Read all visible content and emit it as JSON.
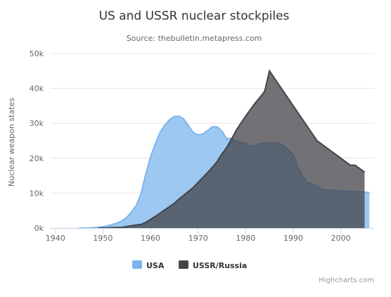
{
  "chart_data": {
    "type": "area",
    "title": "US and USSR nuclear stockpiles",
    "subtitle": "Source: thebulletin.metapress.com",
    "xlabel": "",
    "ylabel": "Nuclear weapon states",
    "xlim": [
      1939,
      2007
    ],
    "ylim": [
      0,
      50000
    ],
    "x_ticks": [
      "1940",
      "1950",
      "1960",
      "1970",
      "1980",
      "1990",
      "2000"
    ],
    "y_ticks": [
      "0k",
      "10k",
      "20k",
      "30k",
      "40k",
      "50k"
    ],
    "grid": true,
    "legend_position": "bottom-center",
    "series": [
      {
        "name": "USA",
        "color": "#7cb5ec",
        "points": [
          [
            1945,
            6
          ],
          [
            1946,
            11
          ],
          [
            1947,
            32
          ],
          [
            1948,
            110
          ],
          [
            1949,
            235
          ],
          [
            1950,
            369
          ],
          [
            1951,
            640
          ],
          [
            1952,
            1005
          ],
          [
            1953,
            1436
          ],
          [
            1954,
            2063
          ],
          [
            1955,
            3057
          ],
          [
            1956,
            4618
          ],
          [
            1957,
            6444
          ],
          [
            1958,
            9822
          ],
          [
            1959,
            15468
          ],
          [
            1960,
            20434
          ],
          [
            1961,
            24126
          ],
          [
            1962,
            27387
          ],
          [
            1963,
            29459
          ],
          [
            1964,
            31056
          ],
          [
            1965,
            31982
          ],
          [
            1966,
            32040
          ],
          [
            1967,
            31233
          ],
          [
            1968,
            29224
          ],
          [
            1969,
            27342
          ],
          [
            1970,
            26662
          ],
          [
            1971,
            26956
          ],
          [
            1972,
            27912
          ],
          [
            1973,
            28999
          ],
          [
            1974,
            28965
          ],
          [
            1975,
            27826
          ],
          [
            1976,
            25579
          ],
          [
            1977,
            25722
          ],
          [
            1978,
            24826
          ],
          [
            1979,
            24605
          ],
          [
            1980,
            24304
          ],
          [
            1981,
            23464
          ],
          [
            1982,
            23708
          ],
          [
            1983,
            24099
          ],
          [
            1984,
            24357
          ],
          [
            1985,
            24237
          ],
          [
            1986,
            24401
          ],
          [
            1987,
            24344
          ],
          [
            1988,
            23586
          ],
          [
            1989,
            22380
          ],
          [
            1990,
            21004
          ],
          [
            1991,
            17287
          ],
          [
            1992,
            14747
          ],
          [
            1993,
            13076
          ],
          [
            1994,
            12555
          ],
          [
            1995,
            12144
          ],
          [
            1996,
            11009
          ],
          [
            1997,
            10950
          ],
          [
            1998,
            10871
          ],
          [
            1999,
            10824
          ],
          [
            2000,
            10577
          ],
          [
            2001,
            10527
          ],
          [
            2002,
            10475
          ],
          [
            2003,
            10421
          ],
          [
            2004,
            10358
          ],
          [
            2005,
            10295
          ],
          [
            2006,
            10104
          ]
        ]
      },
      {
        "name": "USSR/Russia",
        "color": "#434348",
        "points": [
          [
            1949,
            5
          ],
          [
            1950,
            25
          ],
          [
            1951,
            50
          ],
          [
            1952,
            120
          ],
          [
            1953,
            150
          ],
          [
            1954,
            200
          ],
          [
            1955,
            426
          ],
          [
            1956,
            660
          ],
          [
            1957,
            869
          ],
          [
            1958,
            1060
          ],
          [
            1959,
            1605
          ],
          [
            1960,
            2471
          ],
          [
            1961,
            3322
          ],
          [
            1962,
            4238
          ],
          [
            1963,
            5221
          ],
          [
            1964,
            6129
          ],
          [
            1965,
            7089
          ],
          [
            1966,
            8339
          ],
          [
            1967,
            9399
          ],
          [
            1968,
            10538
          ],
          [
            1969,
            11643
          ],
          [
            1970,
            13092
          ],
          [
            1971,
            14478
          ],
          [
            1972,
            15915
          ],
          [
            1973,
            17385
          ],
          [
            1974,
            19055
          ],
          [
            1975,
            21205
          ],
          [
            1976,
            23044
          ],
          [
            1977,
            25393
          ],
          [
            1978,
            27935
          ],
          [
            1979,
            30062
          ],
          [
            1980,
            32049
          ],
          [
            1981,
            33952
          ],
          [
            1982,
            35804
          ],
          [
            1983,
            37431
          ],
          [
            1984,
            39197
          ],
          [
            1985,
            45000
          ],
          [
            1986,
            43000
          ],
          [
            1987,
            41000
          ],
          [
            1988,
            39000
          ],
          [
            1989,
            37000
          ],
          [
            1990,
            35000
          ],
          [
            1991,
            33000
          ],
          [
            1992,
            31000
          ],
          [
            1993,
            29000
          ],
          [
            1994,
            27000
          ],
          [
            1995,
            25000
          ],
          [
            1996,
            24000
          ],
          [
            1997,
            23000
          ],
          [
            1998,
            22000
          ],
          [
            1999,
            21000
          ],
          [
            2000,
            20000
          ],
          [
            2001,
            19000
          ],
          [
            2002,
            18000
          ],
          [
            2003,
            18000
          ],
          [
            2004,
            17000
          ],
          [
            2005,
            16000
          ]
        ]
      }
    ]
  },
  "credits": "Highcharts.com"
}
